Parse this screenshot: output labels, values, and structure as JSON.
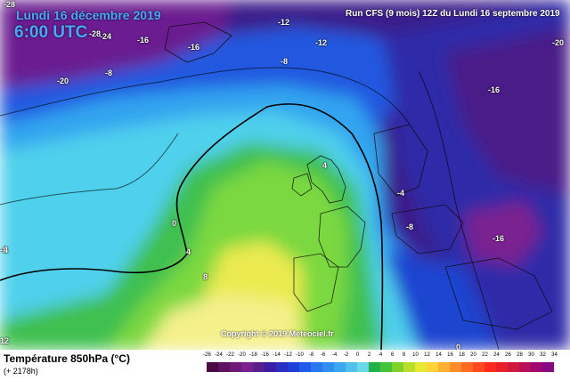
{
  "header": {
    "date": "Lundi 16 décembre 2019",
    "time": "6:00 UTC",
    "run": "Run CFS (9 mois) 12Z du Lundi 16 septembre 2019"
  },
  "copyright": "Copyright © 2019 Meteociel.fr",
  "legend": {
    "title": "Température 850hPa (°C)",
    "subtitle": "(+ 2178h)",
    "ticks": [
      "-26",
      "-24",
      "-22",
      "-20",
      "-18",
      "-16",
      "-14",
      "-12",
      "-10",
      "-8",
      "-6",
      "-4",
      "-2",
      "0",
      "2",
      "4",
      "6",
      "8",
      "10",
      "12",
      "14",
      "16",
      "18",
      "20",
      "22",
      "24",
      "26",
      "28",
      "30",
      "32",
      "34"
    ],
    "colors": [
      "#4a0a40",
      "#5e1160",
      "#6e1a78",
      "#7a2090",
      "#5a1f8a",
      "#3b1ea3",
      "#2a2fc2",
      "#1e40d8",
      "#1f5ae8",
      "#2a78f0",
      "#2f90f2",
      "#3aa8f0",
      "#52c0ec",
      "#6ad8e8",
      "#22b04a",
      "#44c23a",
      "#7fd22a",
      "#b8e02a",
      "#e8e832",
      "#ffd23a",
      "#ffb030",
      "#ff8c2a",
      "#ff6a22",
      "#ff4a1e",
      "#ff2a1e",
      "#e81e2a",
      "#d0183e",
      "#b81058",
      "#a00a70",
      "#880880"
    ]
  },
  "isotherm_labels": [
    "-28",
    "-24",
    "-20",
    "-16",
    "-12",
    "-12",
    "-28",
    "-8",
    "-20",
    "-8",
    "-16",
    "-16",
    "0",
    "4",
    "-4",
    "-8",
    "-8",
    "4",
    "-16",
    "4",
    "8",
    "0",
    "12"
  ],
  "colors": {
    "purple_cold": "#5a1f8a",
    "blue": "#2a5de0",
    "cyan": "#40c8f0",
    "green": "#50c850",
    "yellow": "#f0f060"
  }
}
